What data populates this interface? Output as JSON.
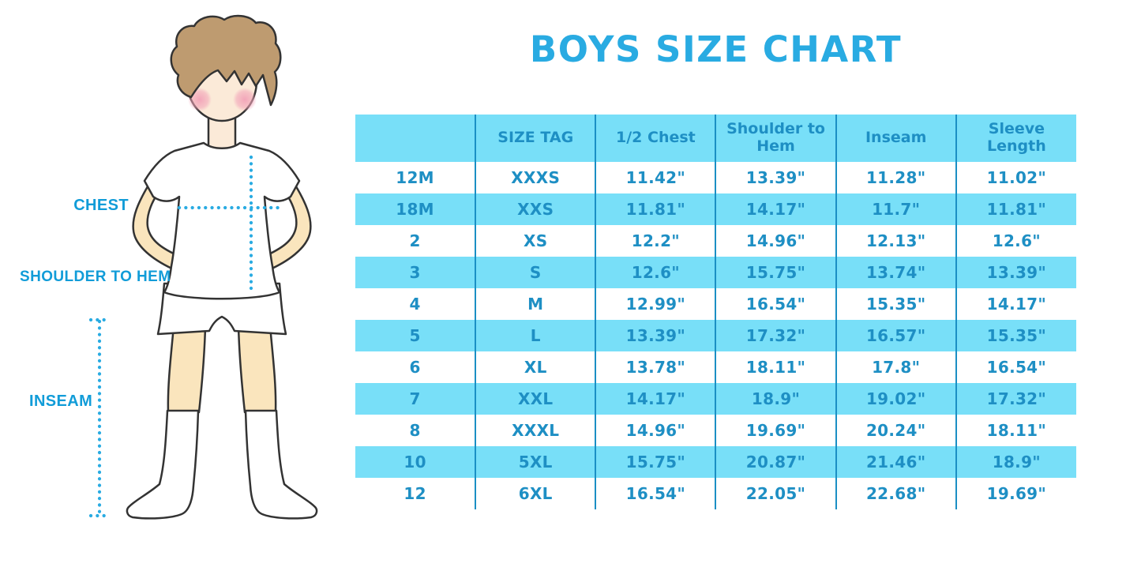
{
  "title": "BOYS SIZE CHART",
  "figure": {
    "labels": {
      "chest": "CHEST",
      "shoulder_to_hem": "SHOULDER TO HEM",
      "inseam": "INSEAM"
    }
  },
  "chart_data": {
    "type": "table",
    "title": "BOYS SIZE CHART",
    "columns": [
      "",
      "SIZE TAG",
      "1/2 Chest",
      "Shoulder to Hem",
      "Inseam",
      "Sleeve Length"
    ],
    "rows": [
      [
        "12M",
        "XXXS",
        "11.42\"",
        "13.39\"",
        "11.28\"",
        "11.02\""
      ],
      [
        "18M",
        "XXS",
        "11.81\"",
        "14.17\"",
        "11.7\"",
        "11.81\""
      ],
      [
        "2",
        "XS",
        "12.2\"",
        "14.96\"",
        "12.13\"",
        "12.6\""
      ],
      [
        "3",
        "S",
        "12.6\"",
        "15.75\"",
        "13.74\"",
        "13.39\""
      ],
      [
        "4",
        "M",
        "12.99\"",
        "16.54\"",
        "15.35\"",
        "14.17\""
      ],
      [
        "5",
        "L",
        "13.39\"",
        "17.32\"",
        "16.57\"",
        "15.35\""
      ],
      [
        "6",
        "XL",
        "13.78\"",
        "18.11\"",
        "17.8\"",
        "16.54\""
      ],
      [
        "7",
        "XXL",
        "14.17\"",
        "18.9\"",
        "19.02\"",
        "17.32\""
      ],
      [
        "8",
        "XXXL",
        "14.96\"",
        "19.69\"",
        "20.24\"",
        "18.11\""
      ],
      [
        "10",
        "5XL",
        "15.75\"",
        "20.87\"",
        "21.46\"",
        "18.9\""
      ],
      [
        "12",
        "6XL",
        "16.54\"",
        "22.05\"",
        "22.68\"",
        "19.69\""
      ]
    ],
    "layout": {
      "row_stripe_pattern": "header blue, then alternating white / light blue",
      "units": "inches"
    }
  },
  "colors": {
    "title_blue": "#29ABE2",
    "table_text_blue": "#1E8FC4",
    "table_stripe_blue": "#78DFF8",
    "table_line_blue": "#1B8FC4",
    "label_blue": "#119CD8",
    "dotted_line_blue": "#29ABE2",
    "skin": "#FAE5BD",
    "face_skin": "#FBEAD8",
    "hair_brown": "#BE9B70",
    "blush_pink": "#F2A3B8",
    "outline": "#333333",
    "background": "#FFFFFF"
  }
}
